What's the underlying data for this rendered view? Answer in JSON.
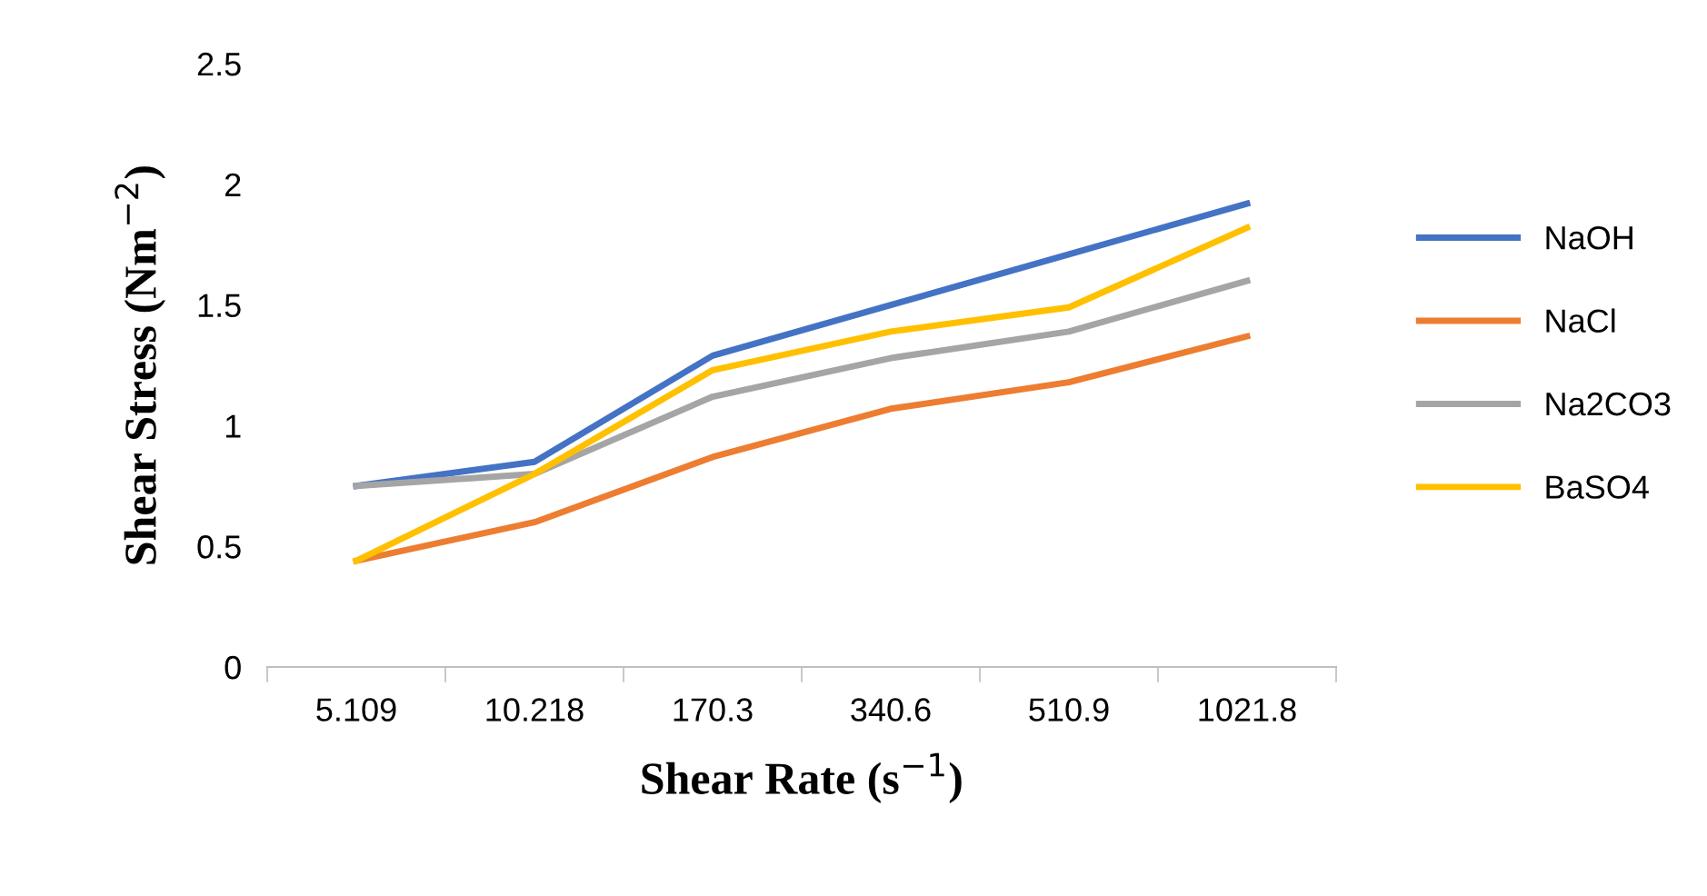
{
  "chart_data": {
    "type": "line",
    "xlabel": "Shear Rate (s$^{−1}$)",
    "ylabel": "Shear Stress (Nm$^{−2}$)",
    "categories": [
      "5.109",
      "10.218",
      "170.3",
      "340.6",
      "510.9",
      "1021.8"
    ],
    "series": [
      {
        "name": "NaOH",
        "color": "#4472c4",
        "values": [
          0.75,
          0.85,
          1.29,
          1.5,
          1.71,
          1.92
        ]
      },
      {
        "name": "NaCl",
        "color": "#ed7d31",
        "values": [
          0.44,
          0.6,
          0.87,
          1.07,
          1.18,
          1.37
        ]
      },
      {
        "name": "Na2CO3",
        "color": "#a5a5a5",
        "values": [
          0.75,
          0.8,
          1.12,
          1.28,
          1.39,
          1.6
        ]
      },
      {
        "name": "BaSO4",
        "color": "#ffc000",
        "values": [
          0.44,
          0.8,
          1.23,
          1.39,
          1.49,
          1.82
        ]
      }
    ],
    "ylim": [
      0,
      2.5
    ],
    "yticks": [
      0,
      0.5,
      1,
      1.5,
      2,
      2.5
    ],
    "grid": false,
    "legend": "right",
    "marker": "none",
    "line_style": "solid"
  }
}
